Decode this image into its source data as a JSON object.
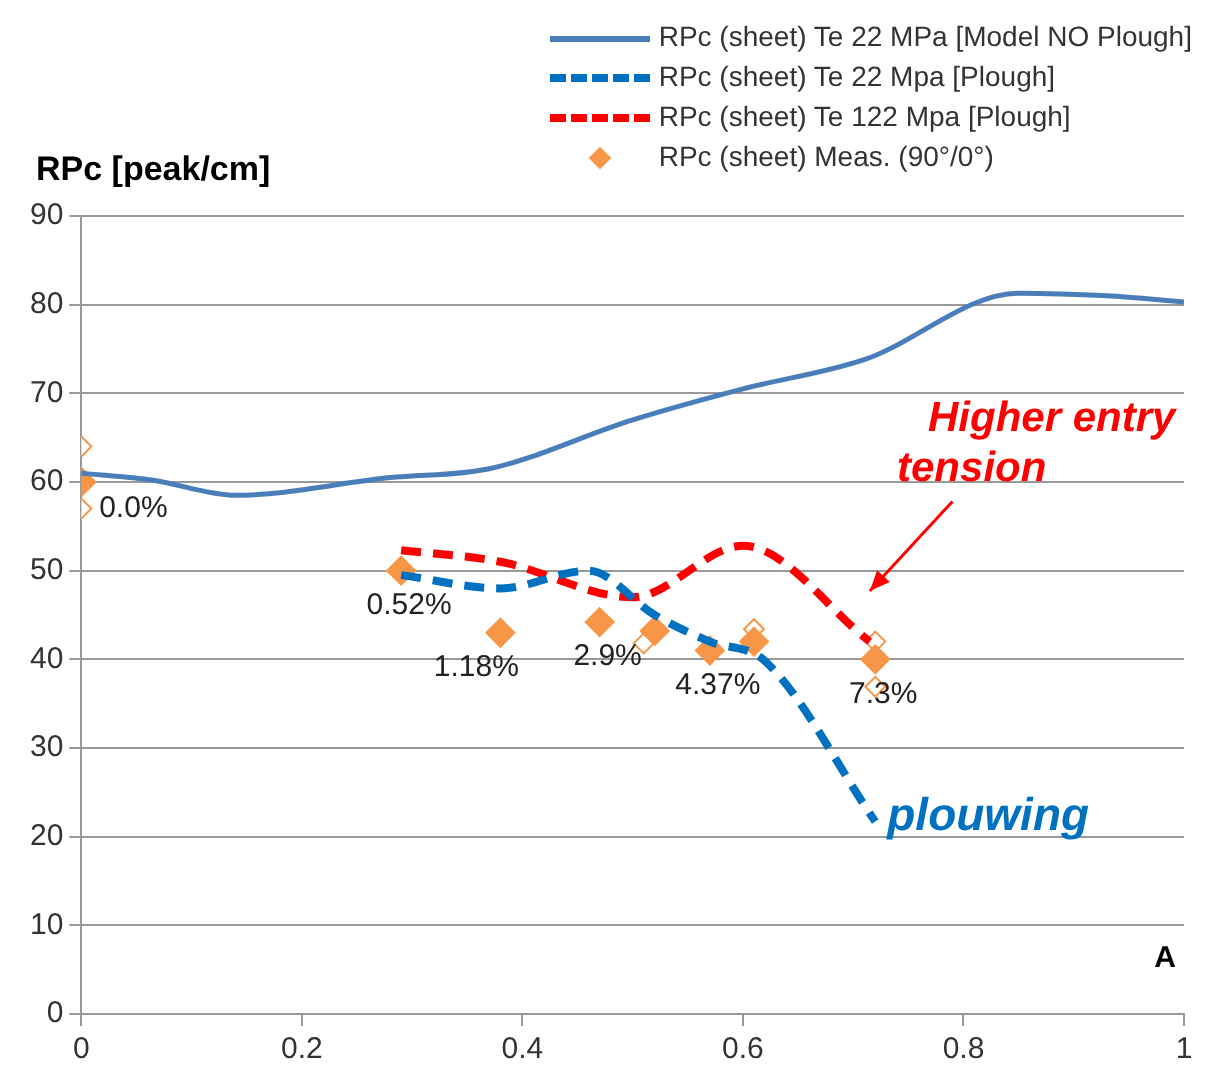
{
  "chart_data": {
    "type": "line",
    "ylabel": "RPc [peak/cm]",
    "xlim": [
      0,
      1
    ],
    "xticks": [
      0,
      0.2,
      0.4,
      0.6,
      0.8,
      1
    ],
    "ylim": [
      0,
      90
    ],
    "yticks": [
      0,
      10,
      20,
      30,
      40,
      50,
      60,
      70,
      80,
      90
    ],
    "grid": "y",
    "legend": "top right",
    "marker": "none",
    "series": [
      {
        "name": "RPc (sheet) Te 22 MPa [Model NO Plough]",
        "color": "#4a7ebb",
        "line_style": "solid",
        "x": [
          0,
          0.065,
          0.14,
          0.28,
          0.37,
          0.5,
          0.6,
          0.71,
          0.85,
          0.93,
          1
        ],
        "values": [
          61,
          60.2,
          58.5,
          60.5,
          61.5,
          67,
          70.5,
          73.8,
          81.3,
          81,
          80.3
        ]
      },
      {
        "name": "RPc (sheet) Te 22 Mpa [Plough]",
        "color": "#0070c0",
        "line_style": "dashed",
        "x": [
          0.29,
          0.38,
          0.46,
          0.52,
          0.57,
          0.62,
          0.72
        ],
        "values": [
          49.5,
          48,
          50,
          45,
          42,
          39.8,
          21.7
        ]
      },
      {
        "name": "RPc (sheet) Te 122 Mpa [Plough]",
        "color": "#ff0000",
        "line_style": "dashed",
        "x": [
          0.29,
          0.38,
          0.5,
          0.6,
          0.715
        ],
        "values": [
          52.3,
          51,
          47,
          52.8,
          42
        ]
      },
      {
        "name": "RPc (sheet) Meas. (90°/0°)",
        "color": "#f79646",
        "type": "scatter",
        "marker": "diamond",
        "x": [
          0,
          0.29,
          0.38,
          0.47,
          0.52,
          0.57,
          0.61,
          0.72
        ],
        "values": [
          60,
          50,
          43,
          44.2,
          43.2,
          41,
          42,
          40
        ]
      },
      {
        "color": "#f79646",
        "type": "scatter",
        "marker": "diamond",
        "x": [
          0,
          0,
          0.51,
          0.61,
          0.72,
          0.72
        ],
        "values": [
          64,
          57,
          41.8,
          43.4,
          42,
          36.9
        ]
      }
    ],
    "annotations": [
      {
        "text": "0.0%",
        "x": 0,
        "y": 60
      },
      {
        "text": "0.52%",
        "x": 0.29,
        "y": 50
      },
      {
        "text": "1.18%",
        "x": 0.38,
        "y": 43
      },
      {
        "text": "2.9%",
        "x": 0.47,
        "y": 44.2
      },
      {
        "text": "4.37%",
        "x": 0.57,
        "y": 41
      },
      {
        "text": "7.3%",
        "x": 0.72,
        "y": 40
      },
      "Higher entry tension",
      {
        "text": "plouwing",
        "x": 0.72,
        "y": 21.7
      },
      "A"
    ]
  }
}
